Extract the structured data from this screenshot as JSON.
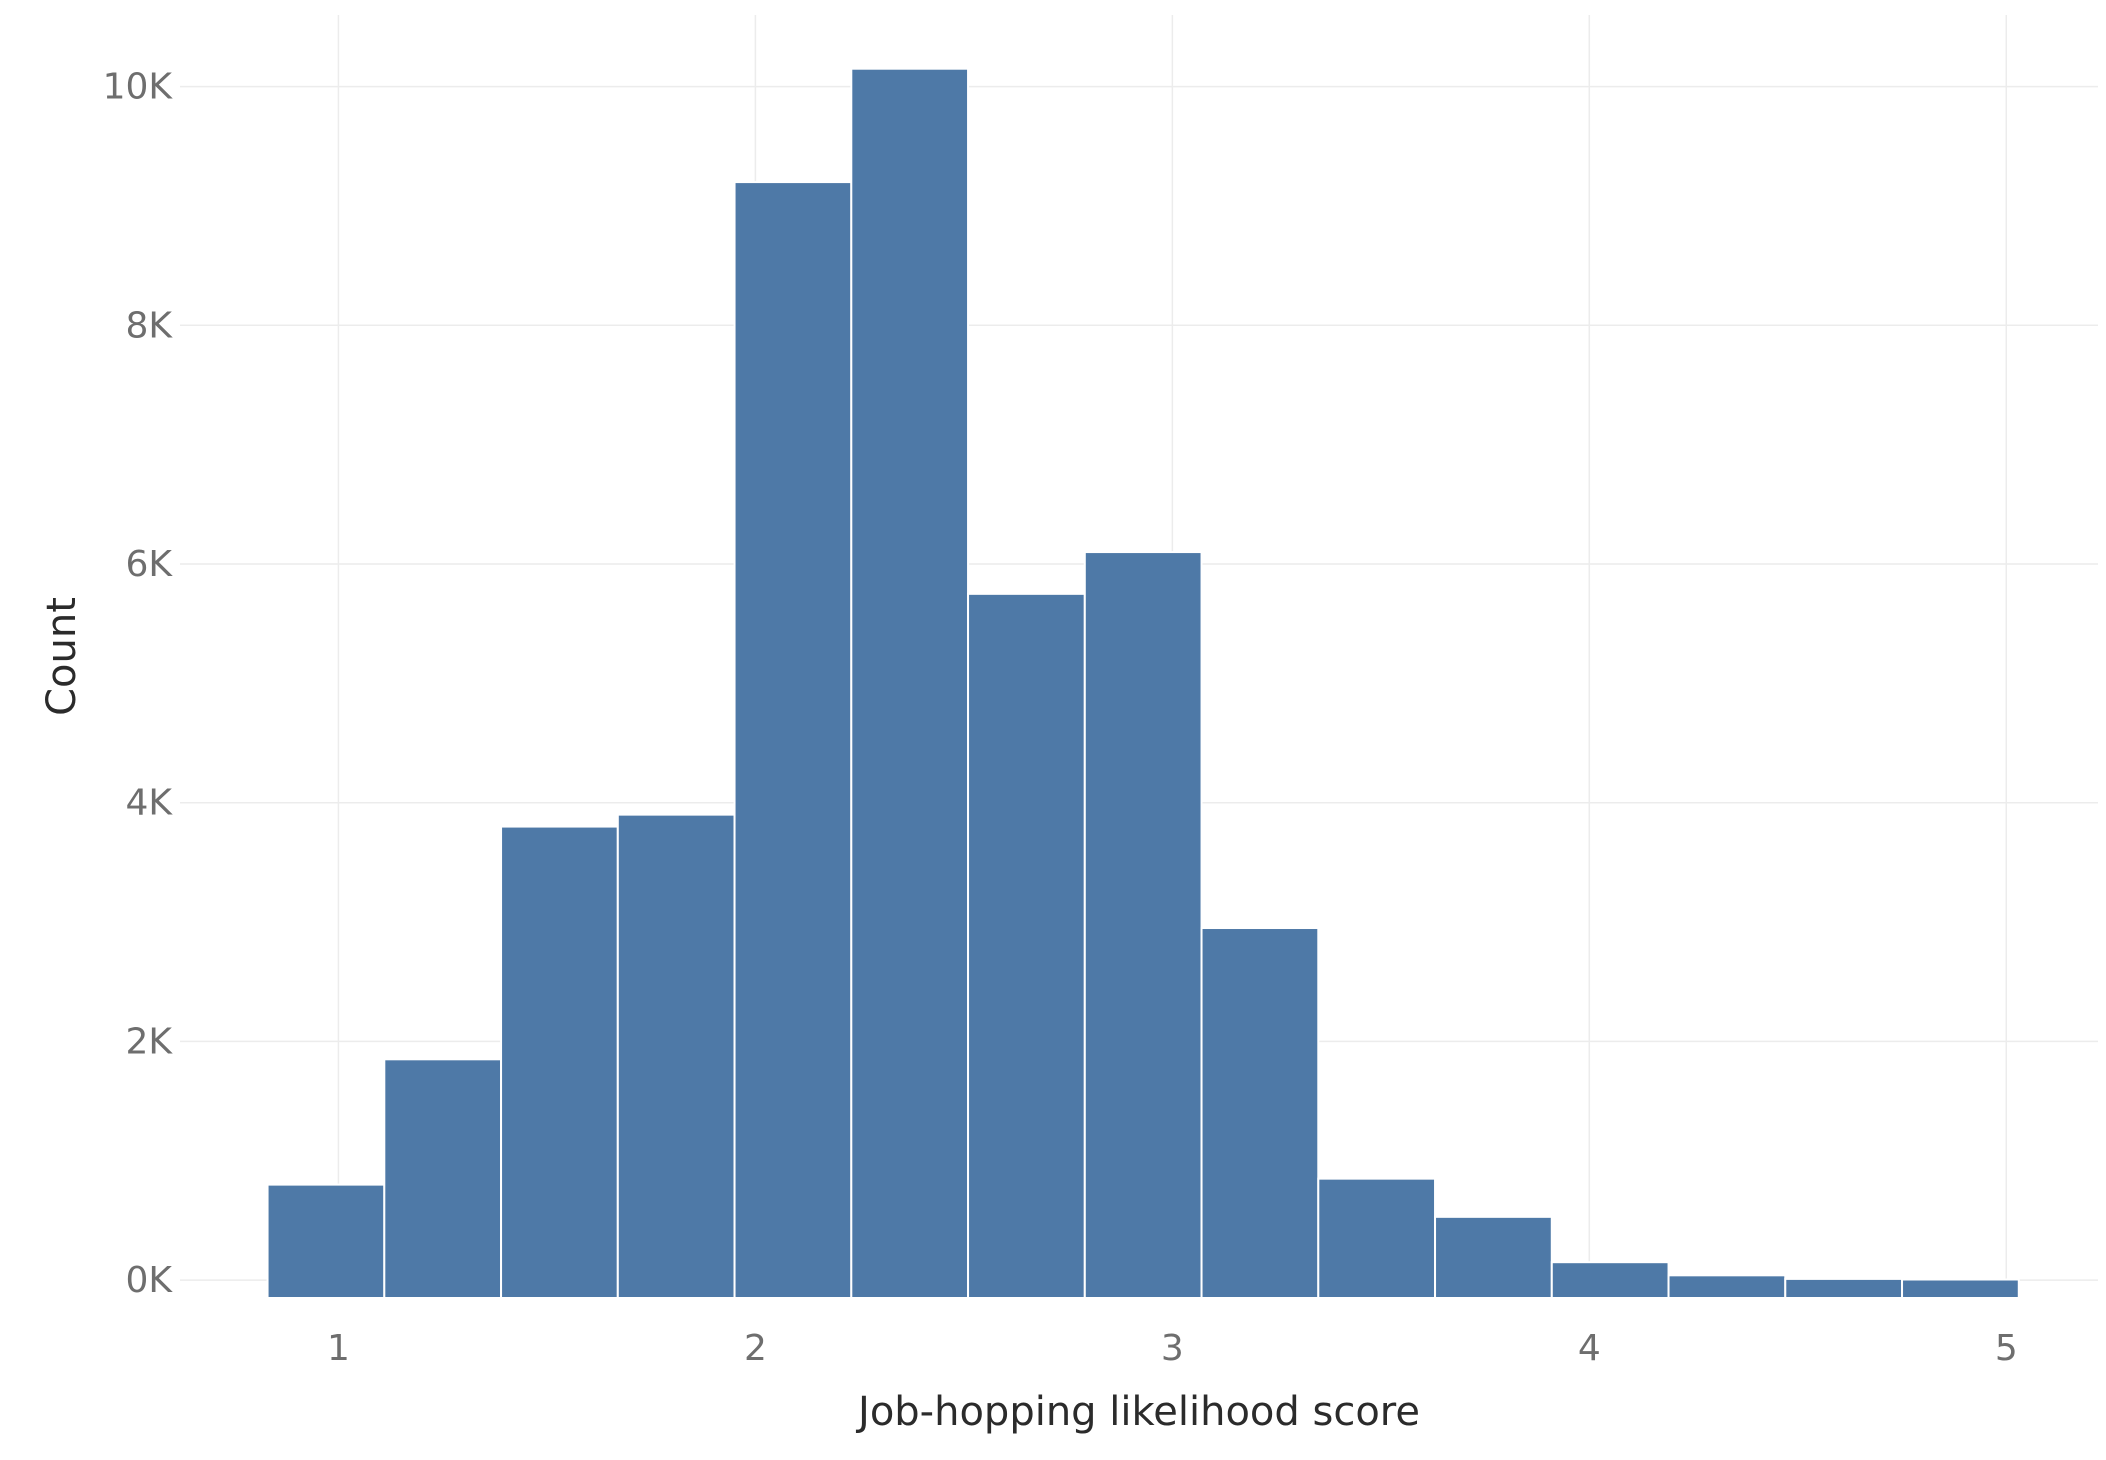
{
  "chart_data": {
    "type": "bar",
    "xlabel": "Job-hopping likelihood score",
    "ylabel": "Count",
    "xlim": [
      0.62,
      5.22
    ],
    "ylim": [
      -0.15,
      10.6
    ],
    "y_unit_suffix": "K",
    "x_ticks": [
      1,
      2,
      3,
      4,
      5
    ],
    "y_ticks": [
      0,
      2,
      4,
      6,
      8,
      10
    ],
    "grid": true,
    "legend": "none",
    "bar_color": "#4e79a7",
    "bins": [
      {
        "x0": 0.83,
        "x1": 1.11,
        "value": 0.8
      },
      {
        "x0": 1.11,
        "x1": 1.39,
        "value": 1.85
      },
      {
        "x0": 1.39,
        "x1": 1.67,
        "value": 3.8
      },
      {
        "x0": 1.67,
        "x1": 1.95,
        "value": 3.9
      },
      {
        "x0": 1.95,
        "x1": 2.23,
        "value": 9.2
      },
      {
        "x0": 2.23,
        "x1": 2.51,
        "value": 10.15
      },
      {
        "x0": 2.51,
        "x1": 2.79,
        "value": 5.75
      },
      {
        "x0": 2.79,
        "x1": 3.07,
        "value": 6.1
      },
      {
        "x0": 3.07,
        "x1": 3.35,
        "value": 2.95
      },
      {
        "x0": 3.35,
        "x1": 3.63,
        "value": 0.85
      },
      {
        "x0": 3.63,
        "x1": 3.91,
        "value": 0.53
      },
      {
        "x0": 3.91,
        "x1": 4.19,
        "value": 0.15
      },
      {
        "x0": 4.19,
        "x1": 4.47,
        "value": 0.04
      },
      {
        "x0": 4.47,
        "x1": 4.75,
        "value": 0.01
      },
      {
        "x0": 4.75,
        "x1": 5.03,
        "value": 0.005
      }
    ]
  }
}
